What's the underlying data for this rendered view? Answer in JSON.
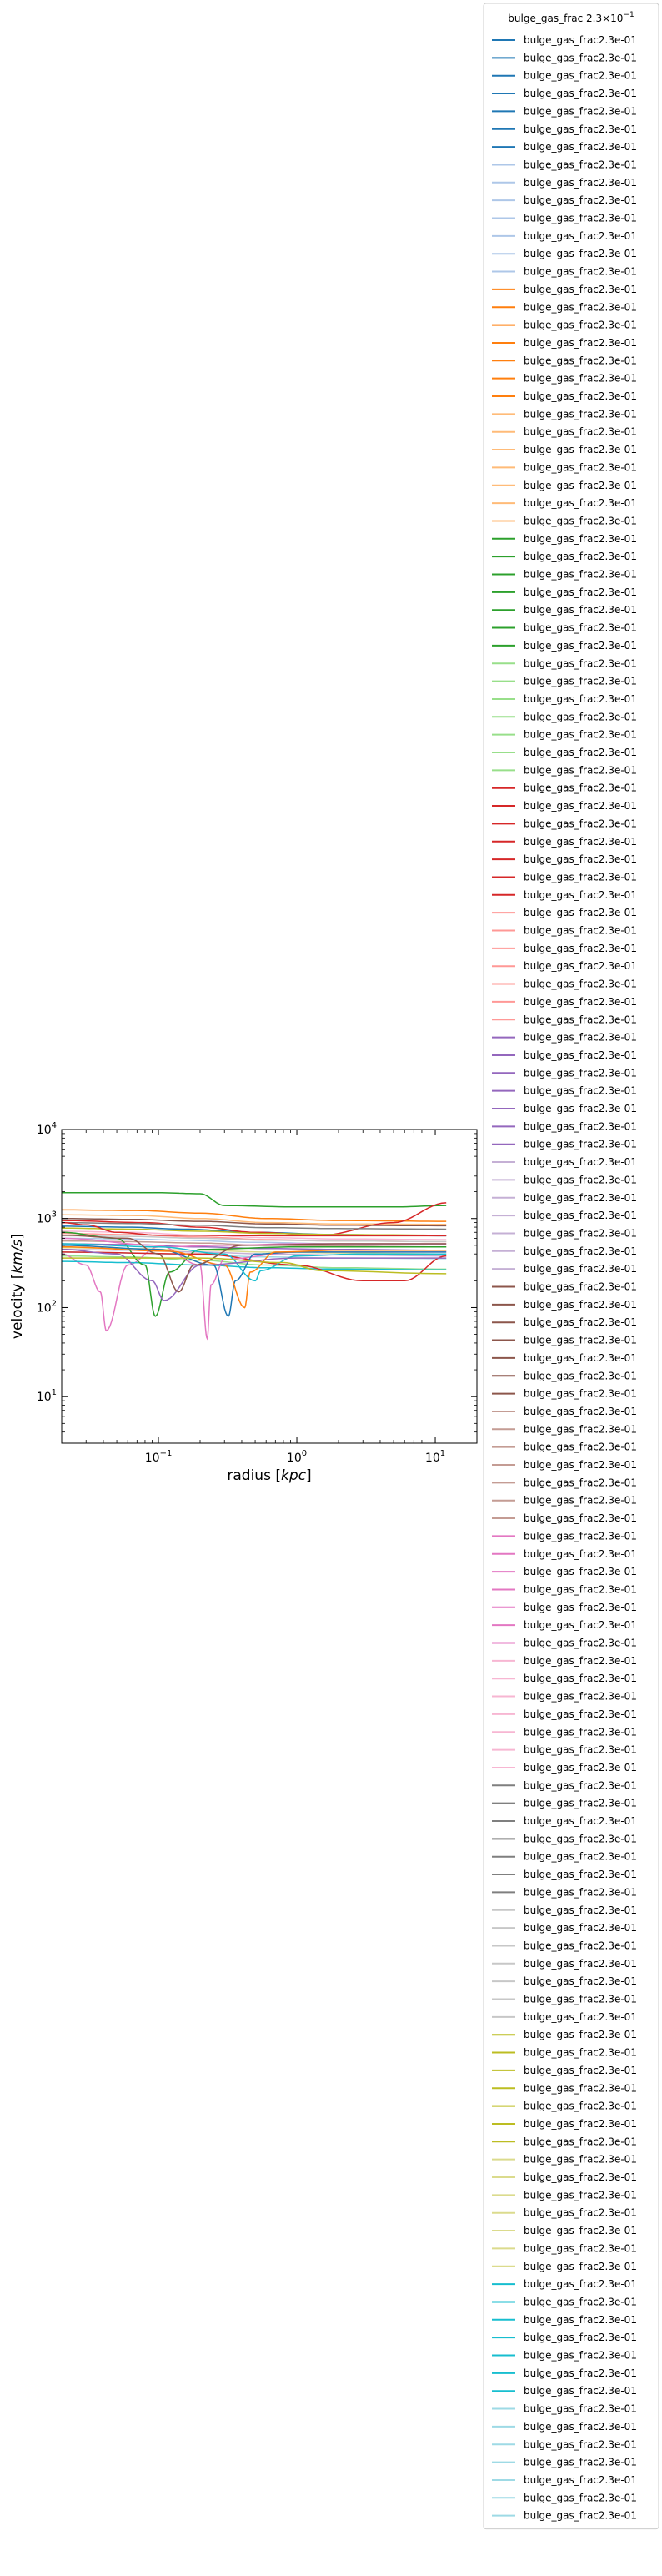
{
  "chart_data": {
    "type": "line",
    "title": "",
    "xlabel": "radius [kpc]",
    "ylabel": "velocity [km/s]",
    "xscale": "log",
    "yscale": "log",
    "xlim": [
      0.02,
      20
    ],
    "ylim": [
      3,
      10000
    ],
    "x_ticks": [
      {
        "value": 0.1,
        "label": "10^-1"
      },
      {
        "value": 1,
        "label": "10^0"
      },
      {
        "value": 10,
        "label": "10^1"
      }
    ],
    "y_ticks": [
      {
        "value": 10,
        "label": "10^1"
      },
      {
        "value": 100,
        "label": "10^2"
      },
      {
        "value": 1000,
        "label": "10^3"
      },
      {
        "value": 10000,
        "label": "10^4"
      }
    ],
    "grid": false,
    "legend": {
      "placement": "outside-right",
      "title": "bulge_gas_frac 2.3×10^-1",
      "entry_label": "bulge_gas_frac2.3e-01",
      "entry_count": 140,
      "colors": [
        "#1f77b4",
        "#aec7e8",
        "#ff7f0e",
        "#ffbb78",
        "#2ca02c",
        "#98df8a",
        "#d62728",
        "#ff9896",
        "#9467bd",
        "#c5b0d5",
        "#8c564b",
        "#c49c94",
        "#e377c2",
        "#f7b6d2",
        "#7f7f7f",
        "#c7c7c7",
        "#bcbd22",
        "#dbdb8d",
        "#17becf",
        "#9edae5"
      ],
      "entries_per_color": 7
    },
    "series_shapes": [
      {
        "color": "#1f77b4",
        "x": [
          0.02,
          0.06,
          0.15,
          0.5,
          2,
          12
        ],
        "y": [
          820,
          800,
          760,
          700,
          660,
          640
        ]
      },
      {
        "color": "#aec7e8",
        "x": [
          0.02,
          0.06,
          0.15,
          0.5,
          2,
          12
        ],
        "y": [
          600,
          590,
          570,
          540,
          520,
          510
        ]
      },
      {
        "color": "#ff7f0e",
        "x": [
          0.02,
          0.07,
          0.2,
          0.6,
          2,
          12
        ],
        "y": [
          1250,
          1230,
          1150,
          1000,
          950,
          930
        ]
      },
      {
        "color": "#ffbb78",
        "x": [
          0.02,
          0.07,
          0.2,
          0.6,
          2,
          12
        ],
        "y": [
          1100,
          1080,
          1000,
          900,
          870,
          860
        ]
      },
      {
        "color": "#2ca02c",
        "x": [
          0.02,
          0.1,
          0.2,
          0.3,
          1,
          5,
          12
        ],
        "y": [
          1950,
          1950,
          1900,
          1400,
          1350,
          1350,
          1400
        ]
      },
      {
        "color": "#98df8a",
        "x": [
          0.02,
          0.06,
          0.2,
          0.6,
          2,
          12
        ],
        "y": [
          380,
          370,
          340,
          300,
          280,
          270
        ]
      },
      {
        "color": "#d62728",
        "x": [
          0.02,
          0.08,
          0.2,
          0.5,
          1.5,
          5,
          12
        ],
        "y": [
          950,
          900,
          800,
          700,
          650,
          900,
          1500
        ]
      },
      {
        "color": "#ff9896",
        "x": [
          0.02,
          0.06,
          0.2,
          0.6,
          2,
          12
        ],
        "y": [
          680,
          660,
          620,
          580,
          560,
          550
        ]
      },
      {
        "color": "#9467bd",
        "x": [
          0.02,
          0.06,
          0.2,
          0.6,
          2,
          12
        ],
        "y": [
          520,
          510,
          480,
          460,
          450,
          440
        ]
      },
      {
        "color": "#c5b0d5",
        "x": [
          0.02,
          0.06,
          0.2,
          0.6,
          2,
          12
        ],
        "y": [
          450,
          440,
          420,
          400,
          390,
          380
        ]
      },
      {
        "color": "#8c564b",
        "x": [
          0.02,
          0.06,
          0.2,
          0.6,
          2,
          12
        ],
        "y": [
          1000,
          980,
          930,
          870,
          840,
          830
        ]
      },
      {
        "color": "#c49c94",
        "x": [
          0.02,
          0.06,
          0.2,
          0.6,
          2,
          12
        ],
        "y": [
          560,
          550,
          530,
          500,
          490,
          480
        ]
      },
      {
        "color": "#e377c2",
        "x": [
          0.02,
          0.03,
          0.038,
          0.042,
          0.06,
          0.1,
          0.3,
          1,
          12
        ],
        "y": [
          400,
          300,
          150,
          55,
          300,
          480,
          500,
          520,
          520
        ]
      },
      {
        "color": "#f7b6d2",
        "x": [
          0.02,
          0.06,
          0.2,
          0.6,
          2,
          12
        ],
        "y": [
          720,
          700,
          650,
          610,
          590,
          580
        ]
      },
      {
        "color": "#7f7f7f",
        "x": [
          0.02,
          0.06,
          0.2,
          0.6,
          2,
          12
        ],
        "y": [
          900,
          880,
          840,
          790,
          770,
          760
        ]
      },
      {
        "color": "#c7c7c7",
        "x": [
          0.02,
          0.06,
          0.2,
          0.6,
          2,
          12
        ],
        "y": [
          640,
          630,
          600,
          570,
          560,
          550
        ]
      },
      {
        "color": "#bcbd22",
        "x": [
          0.02,
          0.06,
          0.2,
          0.6,
          2,
          12
        ],
        "y": [
          780,
          760,
          720,
          680,
          660,
          650
        ]
      },
      {
        "color": "#dbdb8d",
        "x": [
          0.02,
          0.06,
          0.2,
          0.6,
          2,
          12
        ],
        "y": [
          470,
          460,
          440,
          420,
          410,
          400
        ]
      },
      {
        "color": "#17becf",
        "x": [
          0.02,
          0.06,
          0.2,
          0.6,
          2,
          12
        ],
        "y": [
          330,
          320,
          300,
          280,
          270,
          265
        ]
      },
      {
        "color": "#9edae5",
        "x": [
          0.02,
          0.06,
          0.2,
          0.6,
          2,
          12
        ],
        "y": [
          420,
          410,
          390,
          370,
          360,
          355
        ]
      },
      {
        "color": "#2ca02c",
        "x": [
          0.02,
          0.05,
          0.08,
          0.095,
          0.12,
          0.2,
          1,
          12
        ],
        "y": [
          700,
          600,
          300,
          80,
          250,
          450,
          480,
          480
        ]
      },
      {
        "color": "#d62728",
        "x": [
          0.02,
          0.2,
          1,
          3,
          6,
          12
        ],
        "y": [
          420,
          400,
          300,
          200,
          200,
          380
        ]
      },
      {
        "color": "#e377c2",
        "x": [
          0.02,
          0.1,
          0.2,
          0.225,
          0.24,
          0.3,
          1,
          12
        ],
        "y": [
          600,
          500,
          300,
          45,
          180,
          350,
          420,
          420
        ]
      },
      {
        "color": "#1f77b4",
        "x": [
          0.02,
          0.1,
          0.25,
          0.32,
          0.36,
          0.5,
          1,
          12
        ],
        "y": [
          500,
          450,
          300,
          80,
          200,
          400,
          420,
          420
        ]
      },
      {
        "color": "#ff7f0e",
        "x": [
          0.02,
          0.12,
          0.3,
          0.42,
          0.46,
          0.7,
          2,
          12
        ],
        "y": [
          480,
          430,
          300,
          100,
          250,
          420,
          440,
          440
        ]
      },
      {
        "color": "#17becf",
        "x": [
          0.02,
          0.1,
          0.3,
          0.5,
          0.55,
          1,
          3,
          12
        ],
        "y": [
          520,
          480,
          400,
          200,
          260,
          380,
          400,
          400
        ]
      },
      {
        "color": "#9467bd",
        "x": [
          0.02,
          0.05,
          0.09,
          0.11,
          0.2,
          1,
          12
        ],
        "y": [
          450,
          400,
          200,
          120,
          300,
          360,
          360
        ]
      },
      {
        "color": "#8c564b",
        "x": [
          0.02,
          0.06,
          0.1,
          0.14,
          0.18,
          0.4,
          2,
          12
        ],
        "y": [
          650,
          600,
          400,
          150,
          300,
          500,
          520,
          520
        ]
      },
      {
        "color": "#bcbd22",
        "x": [
          0.02,
          0.2,
          0.8,
          1.5,
          12
        ],
        "y": [
          360,
          360,
          320,
          260,
          240
        ]
      },
      {
        "color": "#d62728",
        "x": [
          0.02,
          0.03,
          0.05,
          0.1,
          1,
          12
        ],
        "y": [
          900,
          850,
          700,
          650,
          640,
          640
        ]
      }
    ]
  }
}
